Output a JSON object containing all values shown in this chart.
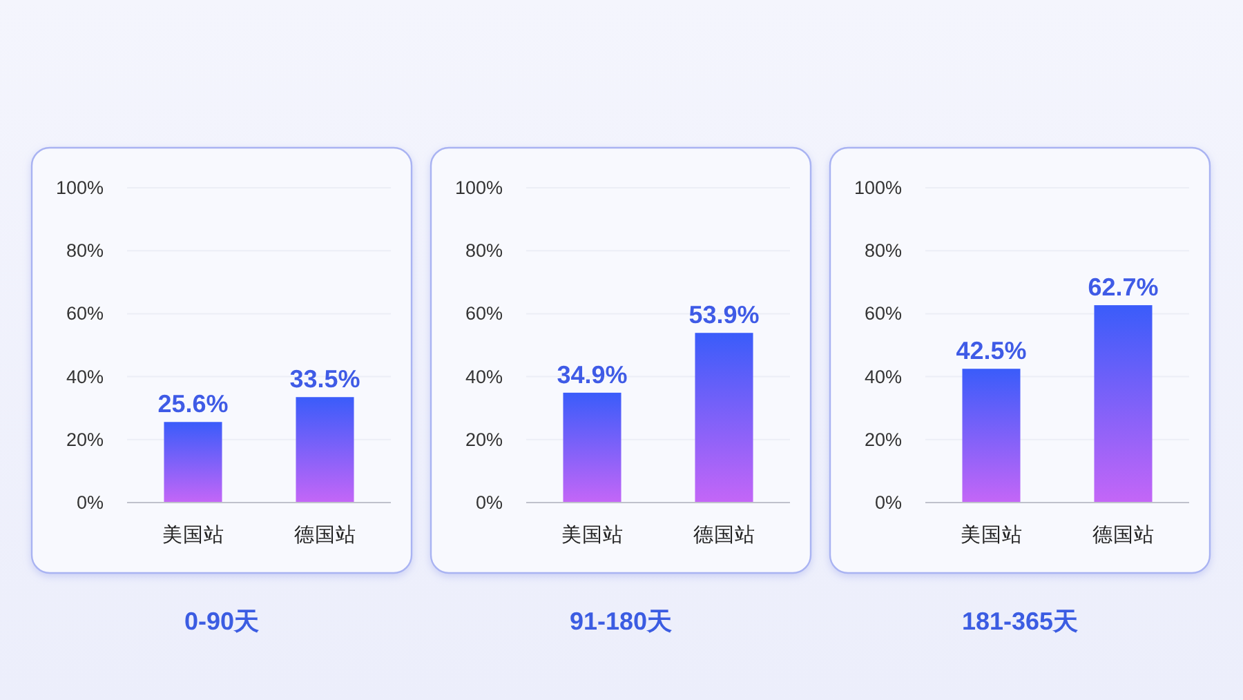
{
  "chart_data": [
    {
      "type": "bar",
      "title": "0-90天",
      "categories": [
        "美国站",
        "德国站"
      ],
      "values": [
        25.6,
        33.5
      ],
      "value_labels": [
        "25.6%",
        "33.5%"
      ],
      "color": "#3a5cfa",
      "ylim": [
        0,
        100
      ],
      "yticks": [
        {
          "value": 0,
          "label": "0%"
        },
        {
          "value": 20,
          "label": "20%"
        },
        {
          "value": 40,
          "label": "40%"
        },
        {
          "value": 60,
          "label": "60%"
        },
        {
          "value": 80,
          "label": "80%"
        },
        {
          "value": 100,
          "label": "100%"
        }
      ],
      "grid": "y"
    },
    {
      "type": "bar",
      "title": "91-180天",
      "categories": [
        "美国站",
        "德国站"
      ],
      "values": [
        34.9,
        53.9
      ],
      "value_labels": [
        "34.9%",
        "53.9%"
      ],
      "color": "#3a5cfa",
      "ylim": [
        0,
        100
      ],
      "yticks": [
        {
          "value": 0,
          "label": "0%"
        },
        {
          "value": 20,
          "label": "20%"
        },
        {
          "value": 40,
          "label": "40%"
        },
        {
          "value": 60,
          "label": "60%"
        },
        {
          "value": 80,
          "label": "80%"
        },
        {
          "value": 100,
          "label": "100%"
        }
      ],
      "grid": "y"
    },
    {
      "type": "bar",
      "title": "181-365天",
      "categories": [
        "美国站",
        "德国站"
      ],
      "values": [
        42.5,
        62.7
      ],
      "value_labels": [
        "42.5%",
        "62.7%"
      ],
      "color": "#3a5cfa",
      "ylim": [
        0,
        100
      ],
      "yticks": [
        {
          "value": 0,
          "label": "0%"
        },
        {
          "value": 20,
          "label": "20%"
        },
        {
          "value": 40,
          "label": "40%"
        },
        {
          "value": 60,
          "label": "60%"
        },
        {
          "value": 80,
          "label": "80%"
        },
        {
          "value": 100,
          "label": "100%"
        }
      ],
      "grid": "y"
    }
  ]
}
